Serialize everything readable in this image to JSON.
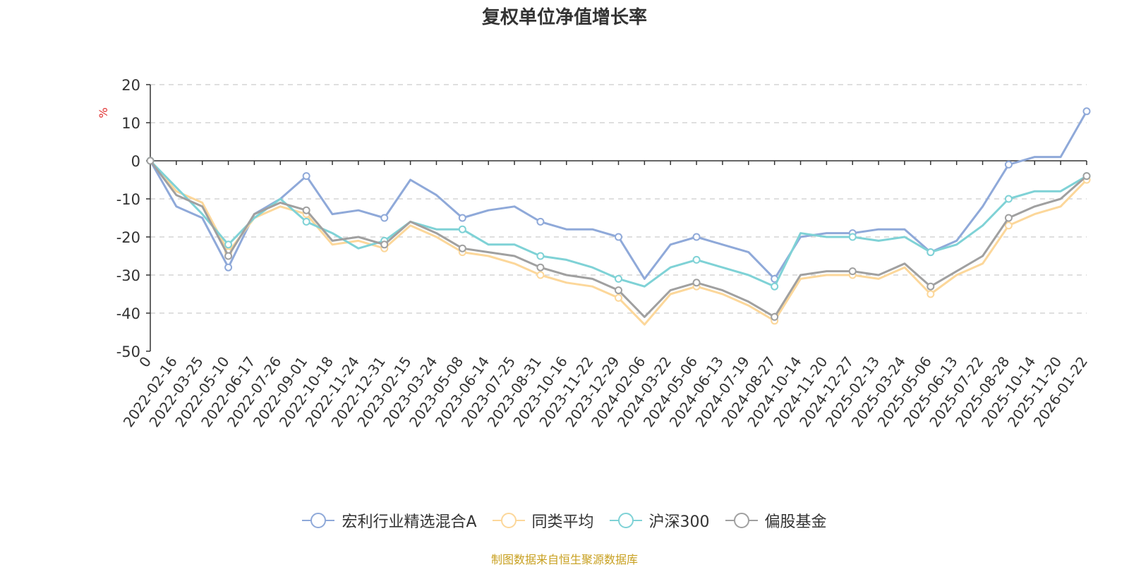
{
  "chart_data": {
    "type": "line",
    "title": "复权单位净值增长率",
    "ylabel": "%",
    "xlabel": "",
    "ylim": [
      -50,
      20
    ],
    "yticks": [
      20,
      10,
      0,
      -10,
      -20,
      -30,
      -40,
      -50
    ],
    "grid": true,
    "legend_position": "bottom-center",
    "x_tick_labels": [
      "0",
      "2022-02-16",
      "2022-03-25",
      "2022-05-10",
      "2022-06-17",
      "2022-07-26",
      "2022-09-01",
      "2022-10-18",
      "2022-11-24",
      "2022-12-31",
      "2023-02-15",
      "2023-03-24",
      "2023-05-08",
      "2023-06-14",
      "2023-07-25",
      "2023-08-31",
      "2023-10-16",
      "2023-11-22",
      "2023-12-29",
      "2024-02-06",
      "2024-03-22",
      "2024-05-06",
      "2024-06-13",
      "2024-07-19",
      "2024-08-27",
      "2024-10-14",
      "2024-11-20",
      "2024-12-27",
      "2025-02-13",
      "2025-03-24",
      "2025-05-06",
      "2025-06-13",
      "2025-07-22",
      "2025-08-28",
      "2025-10-14",
      "2025-11-20",
      "2026-01-22"
    ],
    "series": [
      {
        "name": "宏利行业精选混合A",
        "color": "#8fa9d9",
        "values": [
          0,
          -12,
          -15,
          -28,
          -14,
          -10,
          -4,
          -14,
          -13,
          -15,
          -5,
          -9,
          -15,
          -13,
          -12,
          -16,
          -18,
          -18,
          -20,
          -31,
          -22,
          -20,
          -22,
          -24,
          -31,
          -20,
          -19,
          -19,
          -18,
          -18,
          -24,
          -21,
          -12,
          -1,
          1,
          1,
          13
        ]
      },
      {
        "name": "同类平均",
        "color": "#fcd79a",
        "values": [
          0,
          -8,
          -11,
          -24,
          -15,
          -12,
          -14,
          -22,
          -21,
          -23,
          -17,
          -20,
          -24,
          -25,
          -27,
          -30,
          -32,
          -33,
          -36,
          -43,
          -35,
          -33,
          -35,
          -38,
          -42,
          -31,
          -30,
          -30,
          -31,
          -28,
          -35,
          -30,
          -27,
          -17,
          -14,
          -12,
          -5
        ]
      },
      {
        "name": "沪深300",
        "color": "#7fd2d6",
        "values": [
          0,
          -7,
          -14,
          -22,
          -15,
          -10,
          -16,
          -19,
          -23,
          -21,
          -16,
          -18,
          -18,
          -22,
          -22,
          -25,
          -26,
          -28,
          -31,
          -33,
          -28,
          -26,
          -28,
          -30,
          -33,
          -19,
          -20,
          -20,
          -21,
          -20,
          -24,
          -22,
          -17,
          -10,
          -8,
          -8,
          -4
        ]
      },
      {
        "name": "偏股基金",
        "color": "#a0a0a0",
        "values": [
          0,
          -9,
          -12,
          -25,
          -14,
          -11,
          -13,
          -21,
          -20,
          -22,
          -16,
          -19,
          -23,
          -24,
          -25,
          -28,
          -30,
          -31,
          -34,
          -41,
          -34,
          -32,
          -34,
          -37,
          -41,
          -30,
          -29,
          -29,
          -30,
          -27,
          -33,
          -29,
          -25,
          -15,
          -12,
          -10,
          -4
        ]
      }
    ]
  },
  "legend": [
    {
      "label": "宏利行业精选混合A",
      "color": "#8fa9d9"
    },
    {
      "label": "同类平均",
      "color": "#fcd79a"
    },
    {
      "label": "沪深300",
      "color": "#7fd2d6"
    },
    {
      "label": "偏股基金",
      "color": "#a0a0a0"
    }
  ],
  "footer": {
    "source": "制图数据来自恒生聚源数据库"
  },
  "colors": {
    "axis": "#333333",
    "grid": "#cccccc",
    "ylabel": "#e03030"
  }
}
